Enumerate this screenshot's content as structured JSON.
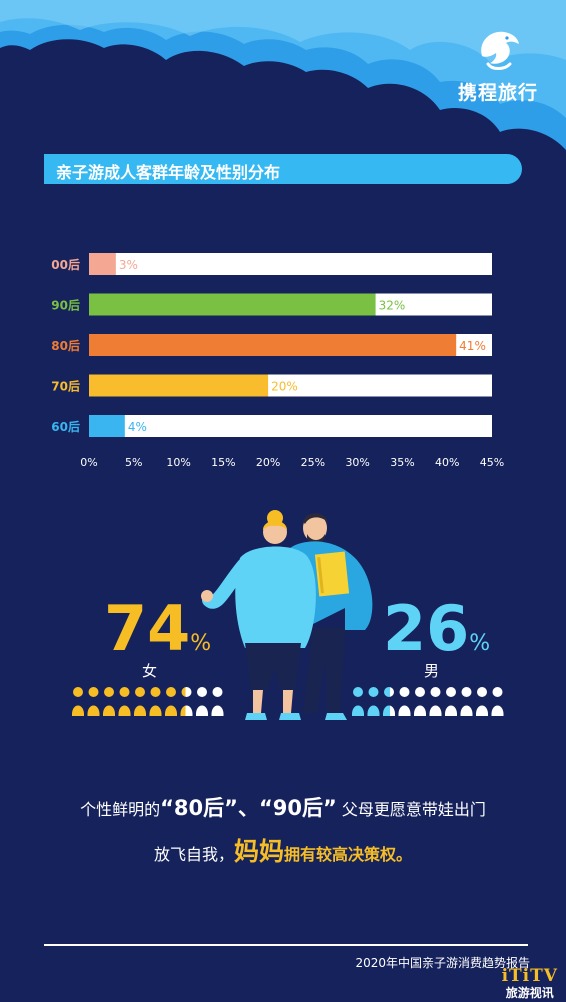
{
  "brand": {
    "name": "携程旅行",
    "logo_icon": "dolphin-icon"
  },
  "colors": {
    "background": "#16225c",
    "title_bar": "#36b9f2",
    "female": "#f6bd24",
    "male": "#5ed3f6",
    "cloud": "#2f9ee8"
  },
  "chart_data": {
    "type": "bar",
    "orientation": "horizontal",
    "title": "亲子游成人客群年龄及性别分布",
    "categories": [
      "00后",
      "90后",
      "80后",
      "70后",
      "60后"
    ],
    "values": [
      3,
      32,
      41,
      20,
      4
    ],
    "value_labels": [
      "3%",
      "32%",
      "41%",
      "20%",
      "4%"
    ],
    "colors": [
      "#f4a894",
      "#7ac143",
      "#ef7d34",
      "#f8bc2c",
      "#3ab5ef"
    ],
    "xlim": [
      0,
      45
    ],
    "xticks": [
      "0%",
      "5%",
      "10%",
      "15%",
      "20%",
      "25%",
      "30%",
      "35%",
      "40%",
      "45%"
    ],
    "grid": false,
    "legend": "none"
  },
  "gender": {
    "female_value": "74",
    "female_pct_sign": "%",
    "female_label": "女",
    "male_value": "26",
    "male_pct_sign": "%",
    "male_label": "男",
    "icon_total": 10,
    "female_filled": 7.4,
    "male_filled": 2.6
  },
  "message": {
    "line1_a": "个性鲜明的",
    "line1_b": "“80后”",
    "line1_c": "、",
    "line1_d": "“90后”",
    "line1_e": " 父母更愿意带娃出门",
    "line2_a": "放飞自我，",
    "line2_b": "妈妈",
    "line2_c": "拥有较高决策权。"
  },
  "footer": {
    "source": "2020年中国亲子游消费趋势报告"
  },
  "watermark": {
    "top": "iTiTV",
    "bottom": "旅游视讯"
  }
}
